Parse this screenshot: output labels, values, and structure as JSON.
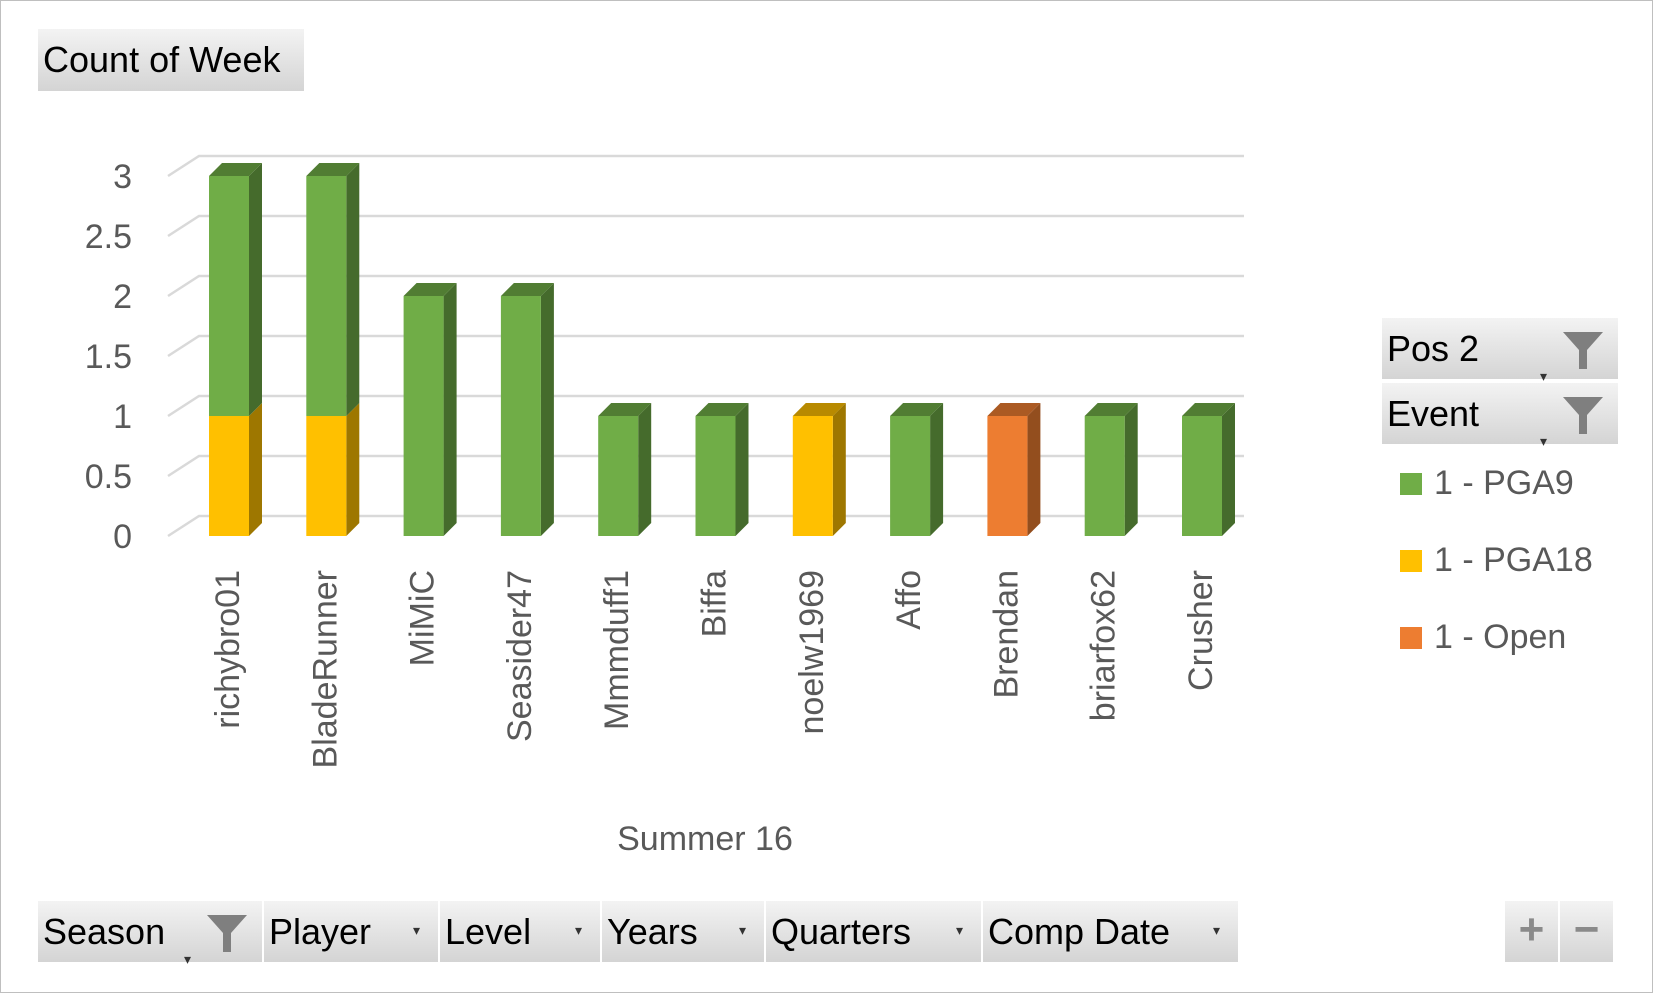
{
  "value_field": {
    "label": "Count of Week"
  },
  "axis_field": {
    "label": "Summer 16"
  },
  "legend_fields": [
    {
      "label": "Pos 2"
    },
    {
      "label": "Event"
    }
  ],
  "axis_buttons": [
    {
      "label": "Season",
      "filter": true
    },
    {
      "label": "Player",
      "filter": false
    },
    {
      "label": "Level",
      "filter": false
    },
    {
      "label": "Years",
      "filter": false
    },
    {
      "label": "Quarters",
      "filter": false
    },
    {
      "label": "Comp Date",
      "filter": false
    }
  ],
  "zoom": {
    "plus": "+",
    "minus": "−"
  },
  "icons": {
    "filter": "filter-funnel-icon",
    "dropdown": "chevron-down-icon"
  },
  "chart_data": {
    "type": "bar",
    "stacked": true,
    "three_d": true,
    "categories": [
      "richybro01",
      "BladeRunner",
      "MiMiC",
      "Seasider47",
      "Mmmduff1",
      "Biffa",
      "noelw1969",
      "Affo",
      "Brendan",
      "briarfox62",
      "Crusher"
    ],
    "series": [
      {
        "name": "1 - PGA18",
        "color": "#ffc000",
        "values": [
          1,
          1,
          0,
          0,
          0,
          0,
          1,
          0,
          0,
          0,
          0
        ]
      },
      {
        "name": "1 - Open",
        "color": "#ed7d31",
        "values": [
          0,
          0,
          0,
          0,
          0,
          0,
          0,
          0,
          1,
          0,
          0
        ]
      },
      {
        "name": "1 - PGA9",
        "color": "#70ad47",
        "values": [
          2,
          2,
          2,
          2,
          1,
          1,
          0,
          1,
          0,
          1,
          1
        ]
      }
    ],
    "legend_order": [
      "1 - PGA9",
      "1 - PGA18",
      "1 - Open"
    ],
    "yticks": [
      "0",
      "0.5",
      "1",
      "1.5",
      "2",
      "2.5",
      "3"
    ],
    "ylim": [
      0,
      3
    ],
    "grid": true,
    "legend_position": "right"
  }
}
